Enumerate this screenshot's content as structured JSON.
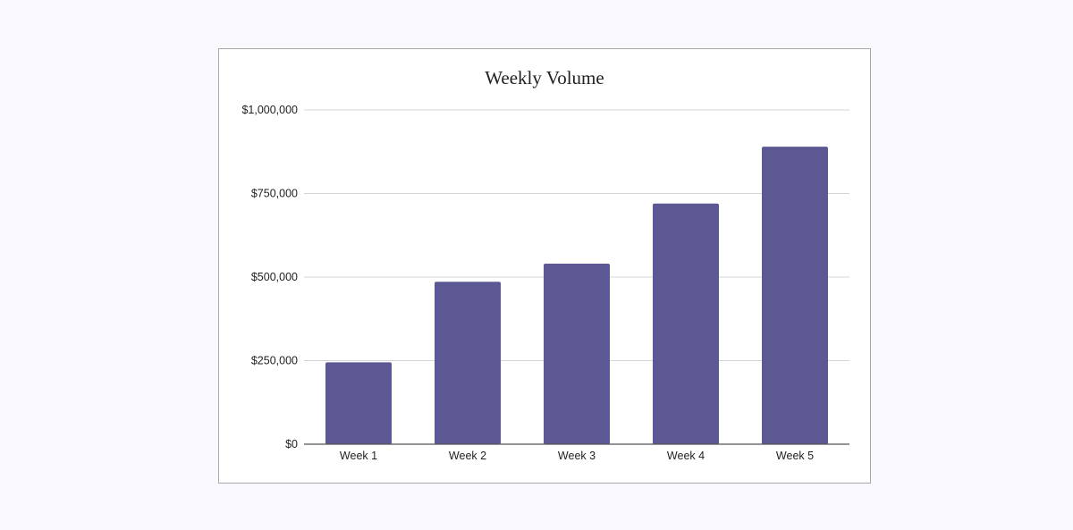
{
  "chart_data": {
    "type": "bar",
    "title": "Weekly Volume",
    "xlabel": "",
    "ylabel": "",
    "categories": [
      "Week 1",
      "Week 2",
      "Week 3",
      "Week 4",
      "Week 5"
    ],
    "values": [
      245000,
      486000,
      540000,
      720000,
      890000
    ],
    "ylim": [
      0,
      1000000
    ],
    "yticks": [
      0,
      250000,
      500000,
      750000,
      1000000
    ],
    "ytick_labels": [
      "$0",
      "$250,000",
      "$500,000",
      "$750,000",
      "$1,000,000"
    ],
    "grid": true,
    "legend": "none",
    "bar_color": "#5b5893",
    "grid_color": "#d4d4d4",
    "axis_color": "#555555"
  }
}
